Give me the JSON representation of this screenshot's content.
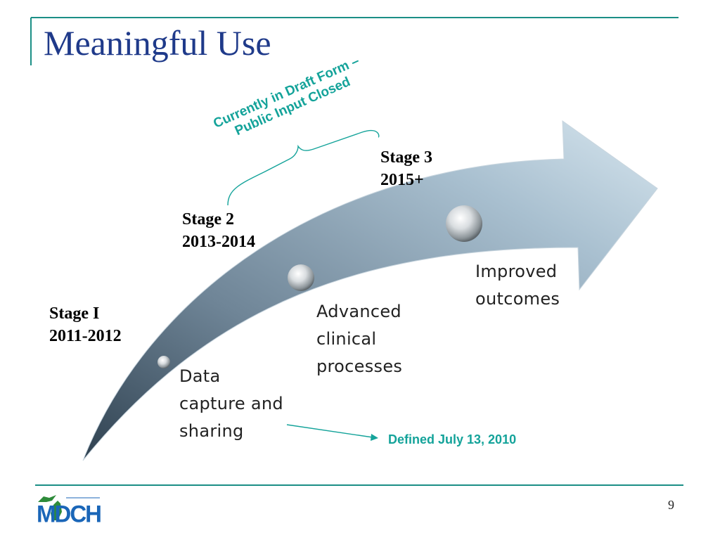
{
  "slide": {
    "title": "Meaningful Use",
    "page_number": "9"
  },
  "stages": [
    {
      "name": "Stage I",
      "years": "2011-2012"
    },
    {
      "name": "Stage 2",
      "years": "2013-2014"
    },
    {
      "name": "Stage 3",
      "years": "2015+"
    }
  ],
  "outcomes": [
    {
      "lines": [
        "Data",
        "capture and",
        "sharing"
      ]
    },
    {
      "lines": [
        "Advanced",
        "clinical",
        "processes"
      ]
    },
    {
      "lines": [
        "Improved",
        "outcomes"
      ]
    }
  ],
  "notes": {
    "draft_line1": "Currently in Draft Form –",
    "draft_line2": "Public Input Closed",
    "defined": "Defined July 13, 2010"
  },
  "logo": {
    "text": "MDCH"
  },
  "colors": {
    "title": "#1f3a8a",
    "accent_teal": "#14a39a",
    "rule": "#1b8f86",
    "logo_blue": "#1a66b8",
    "logo_green": "#2e8b3a"
  }
}
